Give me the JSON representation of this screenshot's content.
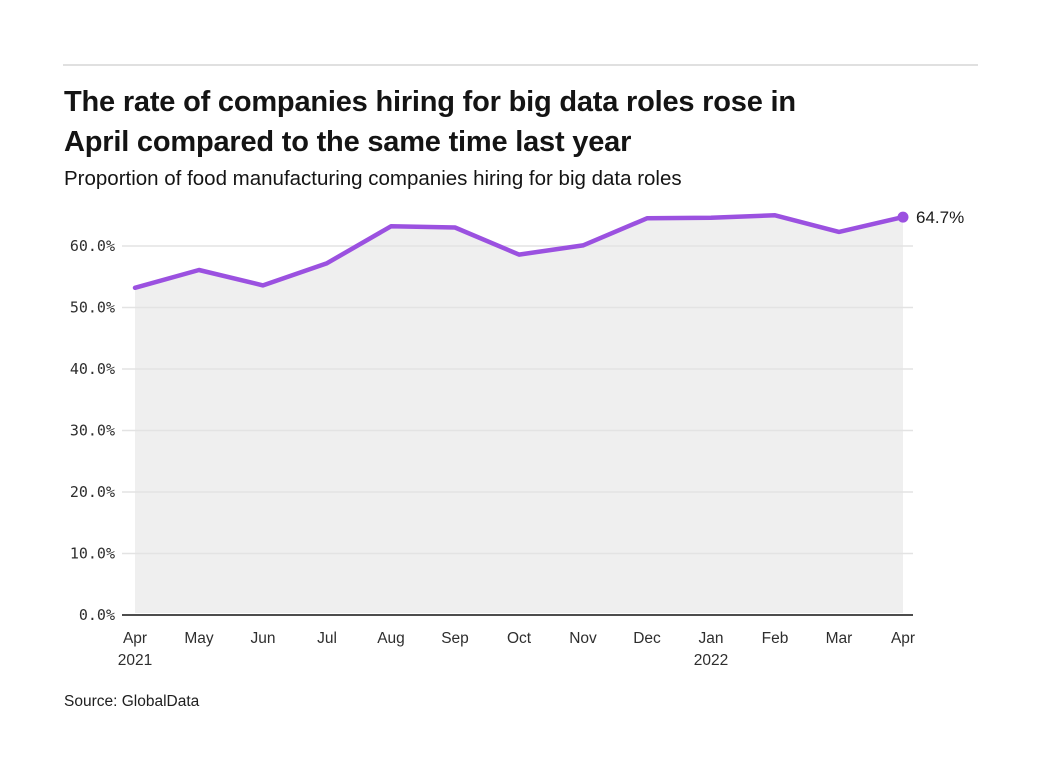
{
  "header": {
    "title_line1": "The rate of companies hiring for big data roles rose in",
    "title_line2": "April compared to the same time last year",
    "subtitle": "Proportion of food manufacturing companies hiring for big data roles"
  },
  "footer": {
    "source": "Source: GlobalData"
  },
  "chart_data": {
    "type": "area",
    "title": "The rate of companies hiring for big data roles rose in April compared to the same time last year",
    "subtitle": "Proportion of food manufacturing companies hiring for big data roles",
    "x_categories": [
      "Apr",
      "May",
      "Jun",
      "Jul",
      "Aug",
      "Sep",
      "Oct",
      "Nov",
      "Dec",
      "Jan",
      "Feb",
      "Mar",
      "Apr"
    ],
    "x_year_labels": {
      "0": "2021",
      "9": "2022"
    },
    "values": [
      53.2,
      56.1,
      53.6,
      57.2,
      63.2,
      63.0,
      58.6,
      60.1,
      64.5,
      64.6,
      65.0,
      62.3,
      64.7
    ],
    "unit": "%",
    "y_ticks": [
      0,
      10,
      20,
      30,
      40,
      50,
      60
    ],
    "y_tick_labels": [
      "0.0%",
      "10.0%",
      "20.0%",
      "30.0%",
      "40.0%",
      "50.0%",
      "60.0%"
    ],
    "ylim": [
      0,
      68
    ],
    "end_label": "64.7%",
    "grid": "horizontal",
    "legend": "none",
    "colors": {
      "line": "#9b51e0",
      "area_fill": "#efefef",
      "gridline": "#e3e3e3",
      "axis": "#4d4d4d",
      "tick_text": "#2e2e2e",
      "end_label_text": "#1a1a1a"
    }
  }
}
